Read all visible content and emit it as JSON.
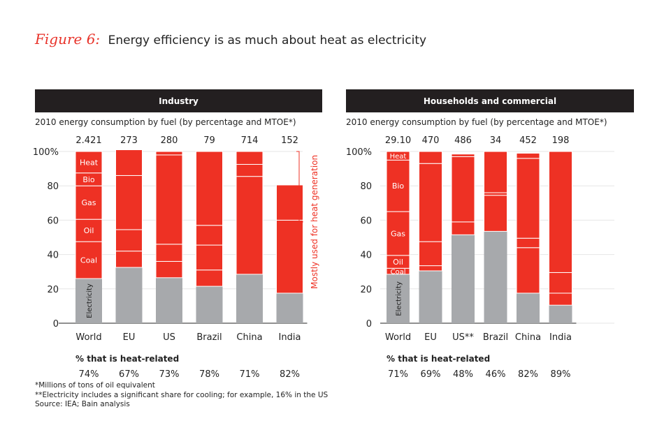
{
  "figure": {
    "label": "Figure 6:",
    "title": "Energy efficiency is as much about heat as electricity"
  },
  "chart_data": [
    {
      "type": "bar",
      "stacked": true,
      "panel_title": "Industry",
      "subtitle": "2010 energy consumption by fuel (by percentage and MTOE*)",
      "categories": [
        "World",
        "EU",
        "US",
        "Brazil",
        "China",
        "India"
      ],
      "totals": [
        "2.421",
        "273",
        "280",
        "79",
        "714",
        "152"
      ],
      "y_ticks": [
        "0",
        "20",
        "40",
        "60",
        "80",
        "100%"
      ],
      "ylim": [
        0,
        100
      ],
      "segment_order": [
        "Electricity",
        "Coal",
        "Oil",
        "Gas",
        "Bio",
        "Heat"
      ],
      "segments": [
        [
          26,
          21.5,
          13,
          19.5,
          7.5,
          12.5
        ],
        [
          32.5,
          9.5,
          12.5,
          31.5,
          15,
          0
        ],
        [
          26.5,
          9.5,
          10,
          52,
          2,
          0
        ],
        [
          21.5,
          9.5,
          14.5,
          11.5,
          43,
          0
        ],
        [
          28.5,
          0,
          0,
          57,
          7,
          7.5
        ],
        [
          17.5,
          42.5,
          20.5,
          0,
          0,
          0
        ]
      ],
      "segment_labels": [
        "Electricity",
        "Coal",
        "Oil",
        "Gas",
        "Bio",
        "Heat"
      ],
      "annotation": "Mostly used for heat generation",
      "heat_related_label": "% that is heat-related",
      "heat_related": [
        "74%",
        "67%",
        "73%",
        "78%",
        "71%",
        "82%"
      ]
    },
    {
      "type": "bar",
      "stacked": true,
      "panel_title": "Households and commercial",
      "subtitle": "2010 energy consumption by fuel (by percentage and MTOE*)",
      "categories": [
        "World",
        "EU",
        "US**",
        "Brazil",
        "China",
        "India"
      ],
      "totals": [
        "29.10",
        "470",
        "486",
        "34",
        "452",
        "198"
      ],
      "y_ticks": [
        "0",
        "20",
        "40",
        "60",
        "80",
        "100%"
      ],
      "ylim": [
        0,
        100
      ],
      "segment_order": [
        "Electricity",
        "Coal",
        "Oil",
        "Gas",
        "Bio",
        "Heat"
      ],
      "segments": [
        [
          28.5,
          3.5,
          7.5,
          25.5,
          30,
          5
        ],
        [
          30.5,
          3,
          14,
          45.5,
          7,
          0
        ],
        [
          51.5,
          0,
          7.5,
          38,
          1.5,
          0
        ],
        [
          53.5,
          0,
          21,
          1.5,
          24,
          0
        ],
        [
          17.5,
          26.5,
          5.5,
          46.5,
          3,
          0
        ],
        [
          10.5,
          7,
          12,
          70.5,
          0,
          0
        ]
      ],
      "segment_labels": [
        "Electricity",
        "Coal",
        "Oil",
        "Gas",
        "Bio",
        "Heat"
      ],
      "heat_related_label": "% that is heat-related",
      "heat_related": [
        "71%",
        "69%",
        "48%",
        "46%",
        "82%",
        "89%"
      ]
    }
  ],
  "footnotes": [
    "*Millions of tons of oil equivalent",
    "**Electricity includes a significant share for cooling; for example, 16% in the US",
    "Source: IEA; Bain analysis"
  ],
  "colors": {
    "accent_red": "#ee3124",
    "electricity_gray": "#a7a9ac",
    "header_black": "#231f20",
    "grid_gray": "#e6e6e6"
  }
}
